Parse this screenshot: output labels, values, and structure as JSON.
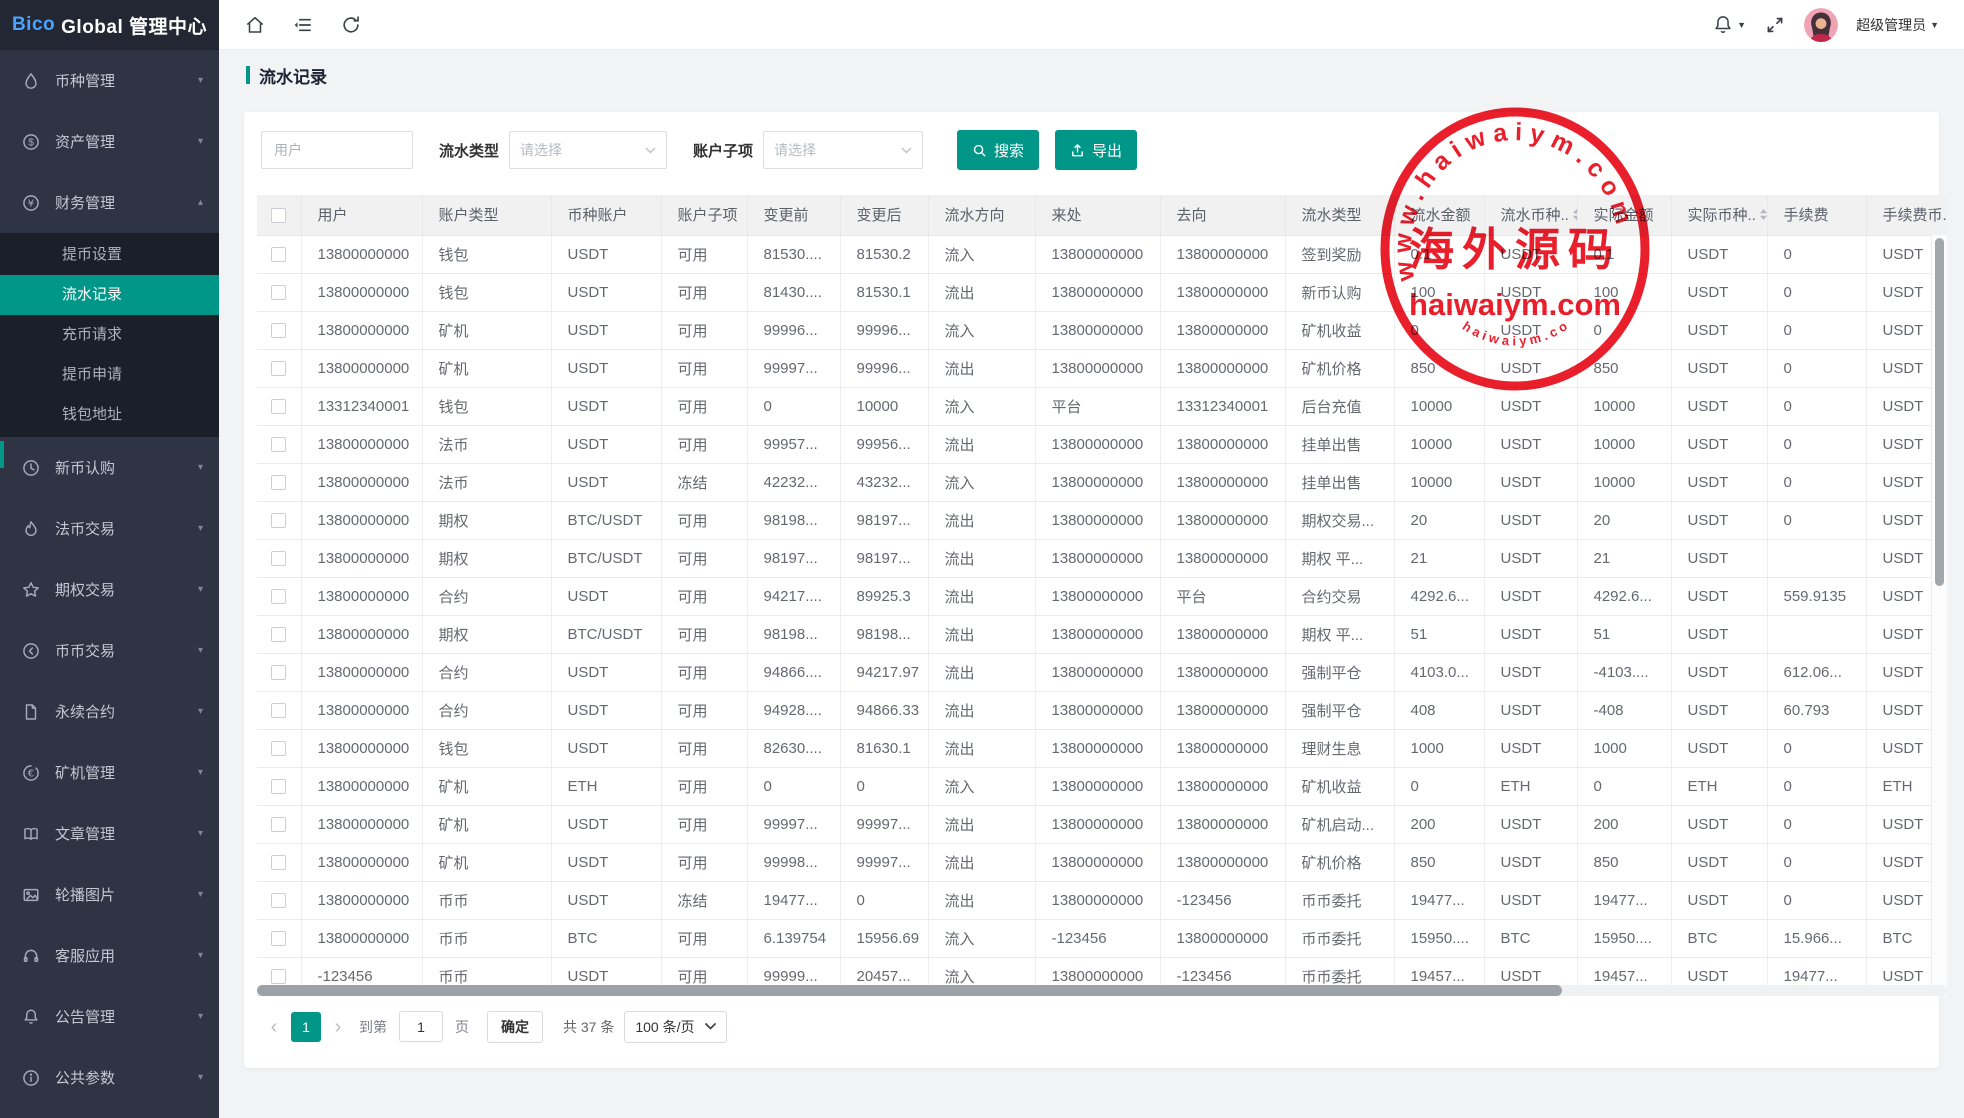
{
  "app": {
    "logo_brand": "Bico",
    "logo_suffix": "Global 管理中心"
  },
  "colors": {
    "accent_teal": "#009688",
    "sidebar_bg": "#2e3444",
    "submenu_bg": "#1b1f29",
    "stamp_red": "#e7000e",
    "brand_blue": "#4aa3ff"
  },
  "topbar": {
    "user_name": "超级管理员"
  },
  "page": {
    "title": "流水记录"
  },
  "sidebar": {
    "items": [
      {
        "label": "币种管理",
        "icon": "droplet-icon"
      },
      {
        "label": "资产管理",
        "icon": "dollar-circle-icon"
      },
      {
        "label": "财务管理",
        "icon": "yen-circle-icon",
        "expanded": true,
        "children": [
          "提币设置",
          "流水记录",
          "充币请求",
          "提币申请",
          "钱包地址"
        ],
        "active_child": "流水记录"
      },
      {
        "label": "新币认购",
        "icon": "clock-icon"
      },
      {
        "label": "法币交易",
        "icon": "fire-icon"
      },
      {
        "label": "期权交易",
        "icon": "star-icon"
      },
      {
        "label": "币币交易",
        "icon": "exchange-circle-icon"
      },
      {
        "label": "永续合约",
        "icon": "document-icon"
      },
      {
        "label": "矿机管理",
        "icon": "euro-circle-icon"
      },
      {
        "label": "文章管理",
        "icon": "book-icon"
      },
      {
        "label": "轮播图片",
        "icon": "image-icon"
      },
      {
        "label": "客服应用",
        "icon": "headset-icon"
      },
      {
        "label": "公告管理",
        "icon": "bell-icon"
      },
      {
        "label": "公共参数",
        "icon": "info-circle-icon"
      }
    ]
  },
  "filters": {
    "user_placeholder": "用户",
    "flow_type_label": "流水类型",
    "flow_type_placeholder": "请选择",
    "sub_account_label": "账户子项",
    "sub_account_placeholder": "请选择",
    "search_label": "搜索",
    "export_label": "导出"
  },
  "table": {
    "headers": [
      "用户",
      "账户类型",
      "币种账户",
      "账户子项",
      "变更前",
      "变更后",
      "流水方向",
      "来处",
      "去向",
      "流水类型",
      "流水金额",
      "流水币种..",
      "实际金额",
      "实际币种..",
      "手续费",
      "手续费币..."
    ],
    "sortable_columns": [
      11,
      13
    ],
    "rows": [
      [
        "13800000000",
        "钱包",
        "USDT",
        "可用",
        "81530....",
        "81530.2",
        "流入",
        "13800000000",
        "13800000000",
        "签到奖励",
        "0.1",
        "USDT",
        "0.1",
        "USDT",
        "0",
        "USDT"
      ],
      [
        "13800000000",
        "钱包",
        "USDT",
        "可用",
        "81430....",
        "81530.1",
        "流出",
        "13800000000",
        "13800000000",
        "新币认购",
        "100",
        "USDT",
        "100",
        "USDT",
        "0",
        "USDT"
      ],
      [
        "13800000000",
        "矿机",
        "USDT",
        "可用",
        "99996...",
        "99996...",
        "流入",
        "13800000000",
        "13800000000",
        "矿机收益",
        "0",
        "USDT",
        "0",
        "USDT",
        "0",
        "USDT"
      ],
      [
        "13800000000",
        "矿机",
        "USDT",
        "可用",
        "99997...",
        "99996...",
        "流出",
        "13800000000",
        "13800000000",
        "矿机价格",
        "850",
        "USDT",
        "850",
        "USDT",
        "0",
        "USDT"
      ],
      [
        "13312340001",
        "钱包",
        "USDT",
        "可用",
        "0",
        "10000",
        "流入",
        "平台",
        "13312340001",
        "后台充值",
        "10000",
        "USDT",
        "10000",
        "USDT",
        "0",
        "USDT"
      ],
      [
        "13800000000",
        "法币",
        "USDT",
        "可用",
        "99957...",
        "99956...",
        "流出",
        "13800000000",
        "13800000000",
        "挂单出售",
        "10000",
        "USDT",
        "10000",
        "USDT",
        "0",
        "USDT"
      ],
      [
        "13800000000",
        "法币",
        "USDT",
        "冻结",
        "42232...",
        "43232...",
        "流入",
        "13800000000",
        "13800000000",
        "挂单出售",
        "10000",
        "USDT",
        "10000",
        "USDT",
        "0",
        "USDT"
      ],
      [
        "13800000000",
        "期权",
        "BTC/USDT",
        "可用",
        "98198...",
        "98197...",
        "流出",
        "13800000000",
        "13800000000",
        "期权交易...",
        "20",
        "USDT",
        "20",
        "USDT",
        "0",
        "USDT"
      ],
      [
        "13800000000",
        "期权",
        "BTC/USDT",
        "可用",
        "98197...",
        "98197...",
        "流出",
        "13800000000",
        "13800000000",
        "期权 平...",
        "21",
        "USDT",
        "21",
        "USDT",
        "",
        "USDT"
      ],
      [
        "13800000000",
        "合约",
        "USDT",
        "可用",
        "94217....",
        "89925.3",
        "流出",
        "13800000000",
        "平台",
        "合约交易",
        "4292.6...",
        "USDT",
        "4292.6...",
        "USDT",
        "559.9135",
        "USDT"
      ],
      [
        "13800000000",
        "期权",
        "BTC/USDT",
        "可用",
        "98198...",
        "98198...",
        "流出",
        "13800000000",
        "13800000000",
        "期权 平...",
        "51",
        "USDT",
        "51",
        "USDT",
        "",
        "USDT"
      ],
      [
        "13800000000",
        "合约",
        "USDT",
        "可用",
        "94866....",
        "94217.97",
        "流出",
        "13800000000",
        "13800000000",
        "强制平仓",
        "4103.0...",
        "USDT",
        "-4103....",
        "USDT",
        "612.06...",
        "USDT"
      ],
      [
        "13800000000",
        "合约",
        "USDT",
        "可用",
        "94928....",
        "94866.33",
        "流出",
        "13800000000",
        "13800000000",
        "强制平仓",
        "408",
        "USDT",
        "-408",
        "USDT",
        "60.793",
        "USDT"
      ],
      [
        "13800000000",
        "钱包",
        "USDT",
        "可用",
        "82630....",
        "81630.1",
        "流出",
        "13800000000",
        "13800000000",
        "理财生息",
        "1000",
        "USDT",
        "1000",
        "USDT",
        "0",
        "USDT"
      ],
      [
        "13800000000",
        "矿机",
        "ETH",
        "可用",
        "0",
        "0",
        "流入",
        "13800000000",
        "13800000000",
        "矿机收益",
        "0",
        "ETH",
        "0",
        "ETH",
        "0",
        "ETH"
      ],
      [
        "13800000000",
        "矿机",
        "USDT",
        "可用",
        "99997...",
        "99997...",
        "流出",
        "13800000000",
        "13800000000",
        "矿机启动...",
        "200",
        "USDT",
        "200",
        "USDT",
        "0",
        "USDT"
      ],
      [
        "13800000000",
        "矿机",
        "USDT",
        "可用",
        "99998...",
        "99997...",
        "流出",
        "13800000000",
        "13800000000",
        "矿机价格",
        "850",
        "USDT",
        "850",
        "USDT",
        "0",
        "USDT"
      ],
      [
        "13800000000",
        "币币",
        "USDT",
        "冻结",
        "19477...",
        "0",
        "流出",
        "13800000000",
        "-123456",
        "币币委托",
        "19477...",
        "USDT",
        "19477...",
        "USDT",
        "0",
        "USDT"
      ],
      [
        "13800000000",
        "币币",
        "BTC",
        "可用",
        "6.139754",
        "15956.69",
        "流入",
        "-123456",
        "13800000000",
        "币币委托",
        "15950....",
        "BTC",
        "15950....",
        "BTC",
        "15.966...",
        "BTC"
      ],
      [
        "-123456",
        "币币",
        "USDT",
        "可用",
        "99999...",
        "20457...",
        "流入",
        "13800000000",
        "-123456",
        "币币委托",
        "19457...",
        "USDT",
        "19457...",
        "USDT",
        "19477...",
        "USDT"
      ]
    ]
  },
  "pagination": {
    "current_page": "1",
    "goto_label": "到第",
    "goto_value": "1",
    "page_unit": "页",
    "confirm_label": "确定",
    "total_label": "共 37 条",
    "per_page_label": "100 条/页"
  },
  "watermark": {
    "top_arc": "w w w . h a i w a i y m . c o m",
    "name": "海外源码",
    "domain": "haiwaiym.com",
    "bottom_arc": "h a i w a i y m . c o m"
  }
}
